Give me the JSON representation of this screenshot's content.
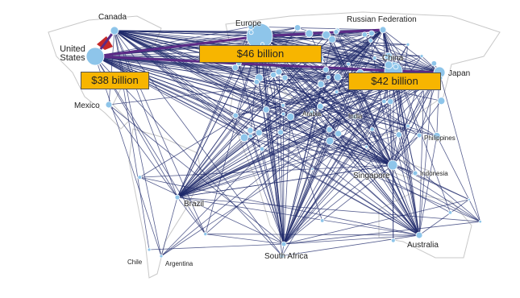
{
  "labels": [
    {
      "text": "Canada"
    },
    {
      "text": "United States"
    },
    {
      "text": "Mexico"
    },
    {
      "text": "Europe"
    },
    {
      "text": "Russian Federation"
    },
    {
      "text": "China"
    },
    {
      "text": "Japan"
    },
    {
      "text": "Arabia"
    },
    {
      "text": "India"
    },
    {
      "text": "Philippines"
    },
    {
      "text": "Singapore"
    },
    {
      "text": "Indonesia"
    },
    {
      "text": "Brazil"
    },
    {
      "text": "Chile"
    },
    {
      "text": "Argentina"
    },
    {
      "text": "South Africa"
    },
    {
      "text": "Australia"
    }
  ],
  "callouts": [
    "$46 billion",
    "$38 billion",
    "$42 billion"
  ]
}
